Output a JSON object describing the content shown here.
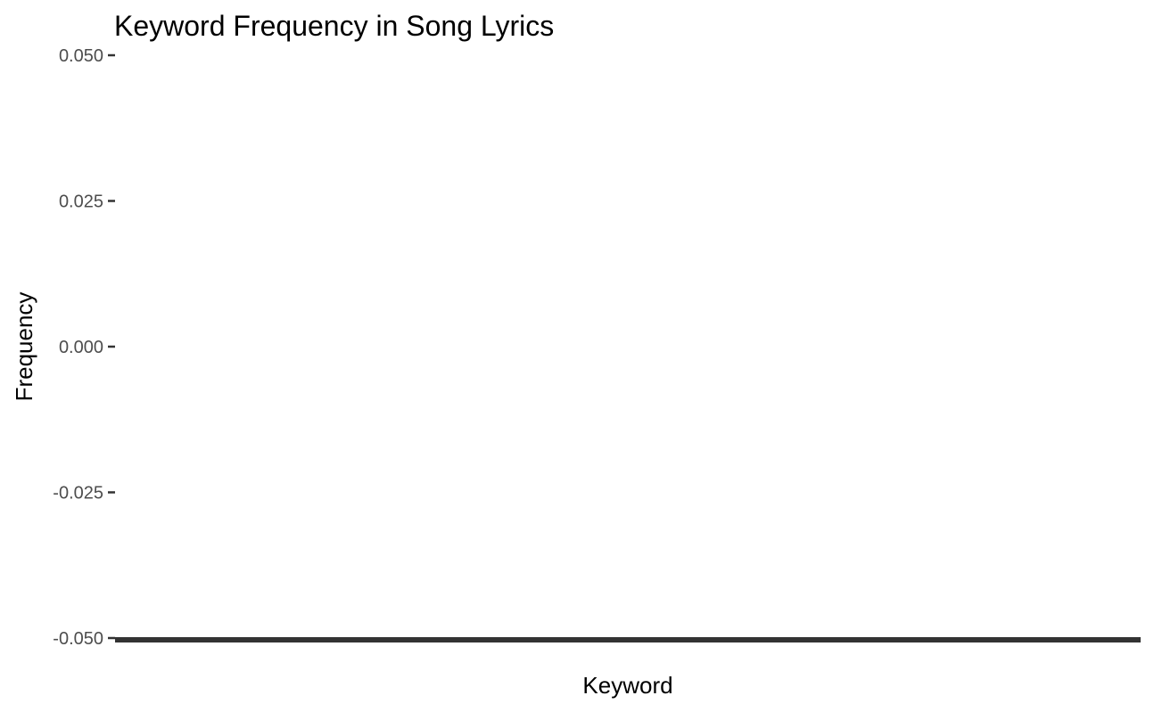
{
  "chart_data": {
    "type": "bar",
    "title": "Keyword Frequency in Song Lyrics",
    "xlabel": "Keyword",
    "ylabel": "Frequency",
    "ylim": [
      -0.05,
      0.05
    ],
    "yticks": [
      "-0.050",
      "-0.025",
      "0.000",
      "0.025",
      "0.050"
    ],
    "grid": false,
    "categories": [],
    "values": []
  },
  "colors": {
    "tick_text": "#4d4d4d",
    "tick_mark": "#333333",
    "title_text": "#000000",
    "background": "#ffffff"
  }
}
